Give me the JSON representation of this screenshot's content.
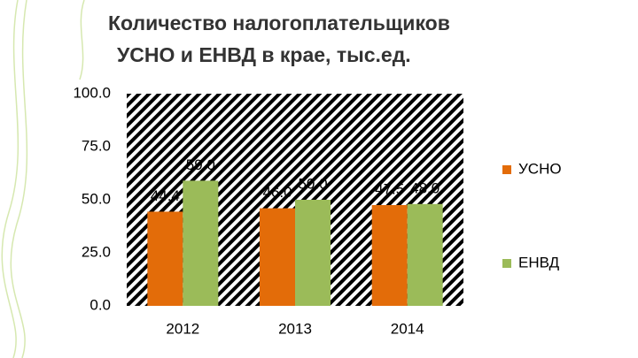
{
  "chart_data": {
    "type": "bar",
    "title": [
      "Количество налогоплательщиков",
      "УСНО и ЕНВД в крае, тыс.ед."
    ],
    "categories": [
      "2012",
      "2013",
      "2014"
    ],
    "series": [
      {
        "name": "УСНО",
        "color": "#e36c09",
        "values": [
          44.4,
          46.0,
          47.5
        ],
        "value_labels": [
          "44.4",
          "46.0",
          "47.5"
        ]
      },
      {
        "name": "ЕНВД",
        "color": "#9bbb59",
        "values": [
          59.0,
          50.0,
          48.0
        ],
        "value_labels": [
          "59.0",
          "50.0",
          "48.0"
        ]
      }
    ],
    "ylim": [
      0,
      100
    ],
    "yticks": [
      {
        "value": 0,
        "label": "0.0"
      },
      {
        "value": 25,
        "label": "25.0"
      },
      {
        "value": 50,
        "label": "50.0"
      },
      {
        "value": 75,
        "label": "75.0"
      },
      {
        "value": 100,
        "label": "100.0"
      }
    ],
    "legend": "right"
  }
}
